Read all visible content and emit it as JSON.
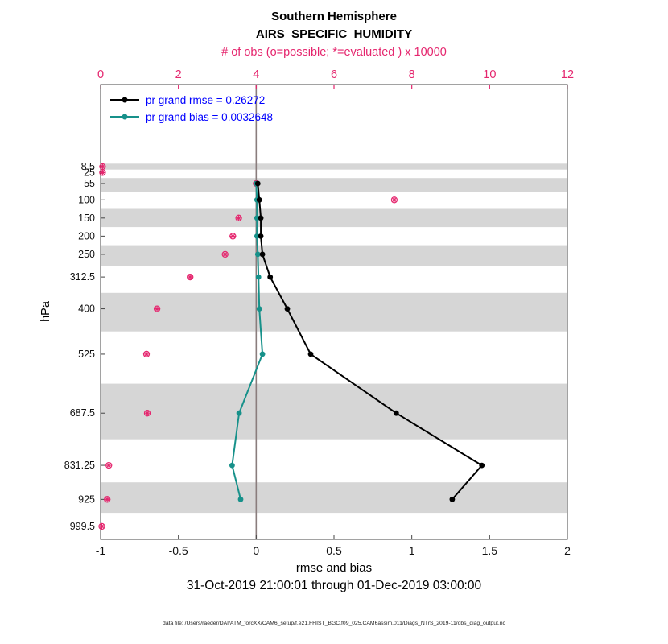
{
  "header": {
    "title_line1": "Southern Hemisphere",
    "title_line2": "AIRS_SPECIFIC_HUMIDITY",
    "top_axis_label": "# of obs (o=possible; *=evaluated ) x 10000"
  },
  "legend": [
    {
      "label": "pr grand rmse = 0.26272",
      "color": "#000000"
    },
    {
      "label": "pr grand bias = 0.0032648",
      "color": "#17918a"
    }
  ],
  "colors": {
    "magenta": "#e5266e",
    "teal": "#17918a",
    "black": "#000000",
    "legend_text": "#0000ff",
    "band": "#d6d6d6",
    "zero_line": "#8a7d7d",
    "axis": "#444444"
  },
  "chart_data": {
    "type": "line",
    "title": "Southern Hemisphere",
    "subtitle": "AIRS_SPECIFIC_HUMIDITY",
    "xlabel": "rmse and bias",
    "ylabel": "hPa",
    "top_axis_label": "# of obs (o=possible; *=evaluated ) x 10000",
    "xlim": [
      -1,
      2
    ],
    "x_ticks": [
      -1,
      -0.5,
      0,
      0.5,
      1,
      1.5,
      2
    ],
    "obs_axis_lim": [
      0,
      12
    ],
    "obs_axis_ticks": [
      0,
      2,
      4,
      6,
      8,
      10,
      12
    ],
    "y_axis_unit": "hPa",
    "pressure_levels": [
      8.5,
      25,
      55,
      100,
      150,
      200,
      250,
      312.5,
      400,
      525,
      687.5,
      831.25,
      925,
      999.5
    ],
    "banded_levels": [
      8.5,
      55,
      150,
      250,
      400,
      687.5,
      925
    ],
    "zero_line_x": 0,
    "grid": false,
    "legend_position": "top-left-inside",
    "series": [
      {
        "name": "pr grand rmse",
        "stat_value": 0.26272,
        "data_name": "rmse-series",
        "color": "#000000",
        "marker": "dot",
        "axis": "bottom",
        "levels": [
          55,
          100,
          150,
          200,
          250,
          312.5,
          400,
          525,
          687.5,
          831.25,
          925
        ],
        "values": [
          0.01,
          0.02,
          0.03,
          0.03,
          0.04,
          0.09,
          0.2,
          0.35,
          0.9,
          1.45,
          1.26
        ]
      },
      {
        "name": "pr grand bias",
        "stat_value": 0.0032648,
        "data_name": "bias-series",
        "color": "#17918a",
        "marker": "dot",
        "axis": "bottom",
        "levels": [
          55,
          100,
          150,
          200,
          250,
          312.5,
          400,
          525,
          687.5,
          831.25,
          925
        ],
        "values": [
          0.0,
          0.005,
          0.005,
          0.005,
          0.01,
          0.015,
          0.02,
          0.04,
          -0.11,
          -0.155,
          -0.1
        ]
      },
      {
        "name": "observations possible and evaluated (x 10000)",
        "data_name": "obs-markers",
        "color": "#e5266e",
        "marker": "star-circle",
        "axis": "top",
        "levels": [
          8.5,
          25,
          55,
          100,
          150,
          200,
          250,
          312.5,
          400,
          525,
          687.5,
          831.25,
          925,
          999.5
        ],
        "values": [
          0.05,
          0.05,
          4.0,
          7.55,
          3.55,
          3.4,
          3.2,
          2.3,
          1.45,
          1.18,
          1.2,
          0.21,
          0.17,
          0.03
        ]
      }
    ]
  },
  "footer": {
    "caption": "31-Oct-2019 21:00:01 through 01-Dec-2019 03:00:00",
    "datafile": "data file: /Users/raeder/DAI/ATM_forcXX/CAM6_setup/f.e21.FHIST_BGC.f09_025.CAM6assim.011/Diags_NTrS_2019-11/obs_diag_output.nc"
  }
}
